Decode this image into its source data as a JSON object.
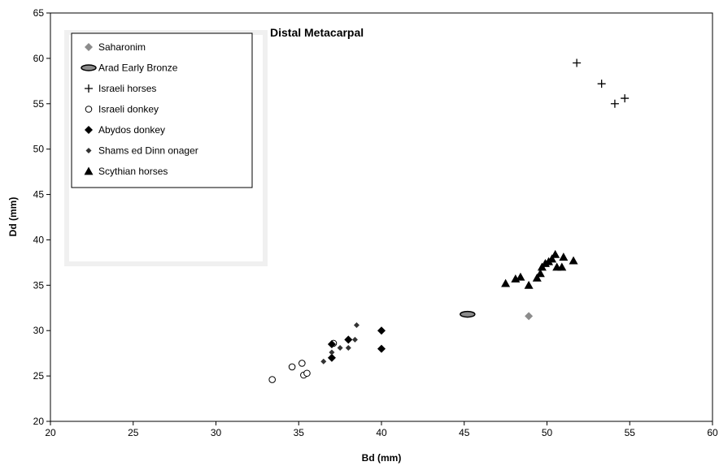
{
  "chart_data": {
    "type": "scatter",
    "title": "Distal Metacarpal",
    "xlabel": "Bd (mm)",
    "ylabel": "Dd (mm)",
    "xlim": [
      20,
      60
    ],
    "ylim": [
      20,
      65
    ],
    "xticks": [
      20,
      25,
      30,
      35,
      40,
      45,
      50,
      55,
      60
    ],
    "yticks": [
      20,
      25,
      30,
      35,
      40,
      45,
      50,
      55,
      60,
      65
    ],
    "grid": false,
    "legend_position": "top-left",
    "series": [
      {
        "name": "Saharonim",
        "marker": "diamond-gray",
        "color": "#8c8c8c",
        "points": [
          [
            48.9,
            31.6
          ]
        ]
      },
      {
        "name": "Arad Early Bronze",
        "marker": "ellipse",
        "color": "#8c8c8c",
        "points": [
          [
            45.2,
            31.8
          ]
        ]
      },
      {
        "name": "Israeli horses",
        "marker": "plus",
        "color": "#000000",
        "points": [
          [
            51.8,
            59.5
          ],
          [
            53.3,
            57.2
          ],
          [
            54.1,
            55.0
          ],
          [
            54.7,
            55.6
          ]
        ]
      },
      {
        "name": "Israeli donkey",
        "marker": "circle-open",
        "color": "#000000",
        "points": [
          [
            33.4,
            24.6
          ],
          [
            34.6,
            26.0
          ],
          [
            35.2,
            26.4
          ],
          [
            35.3,
            25.1
          ],
          [
            35.5,
            25.3
          ],
          [
            37.1,
            28.6
          ]
        ]
      },
      {
        "name": "Abydos donkey",
        "marker": "diamond",
        "color": "#000000",
        "points": [
          [
            37.0,
            27.0
          ],
          [
            38.0,
            29.0
          ],
          [
            40.0,
            30.0
          ],
          [
            40.0,
            28.0
          ],
          [
            37.0,
            28.5
          ]
        ]
      },
      {
        "name": "Shams ed Dinn onager",
        "marker": "diamond-small",
        "color": "#333333",
        "points": [
          [
            36.5,
            26.6
          ],
          [
            37.5,
            28.1
          ],
          [
            38.0,
            28.1
          ],
          [
            38.4,
            29.0
          ],
          [
            38.5,
            30.6
          ],
          [
            37.0,
            27.6
          ]
        ]
      },
      {
        "name": "Scythian horses",
        "marker": "triangle",
        "color": "#000000",
        "points": [
          [
            47.5,
            35.2
          ],
          [
            48.1,
            35.7
          ],
          [
            48.4,
            35.9
          ],
          [
            48.9,
            35.0
          ],
          [
            49.4,
            35.8
          ],
          [
            49.6,
            36.3
          ],
          [
            49.7,
            37.0
          ],
          [
            49.9,
            37.4
          ],
          [
            50.1,
            37.6
          ],
          [
            50.3,
            37.9
          ],
          [
            50.5,
            38.4
          ],
          [
            50.6,
            37.0
          ],
          [
            50.9,
            37.0
          ],
          [
            51.0,
            38.1
          ],
          [
            51.6,
            37.7
          ]
        ]
      }
    ]
  }
}
